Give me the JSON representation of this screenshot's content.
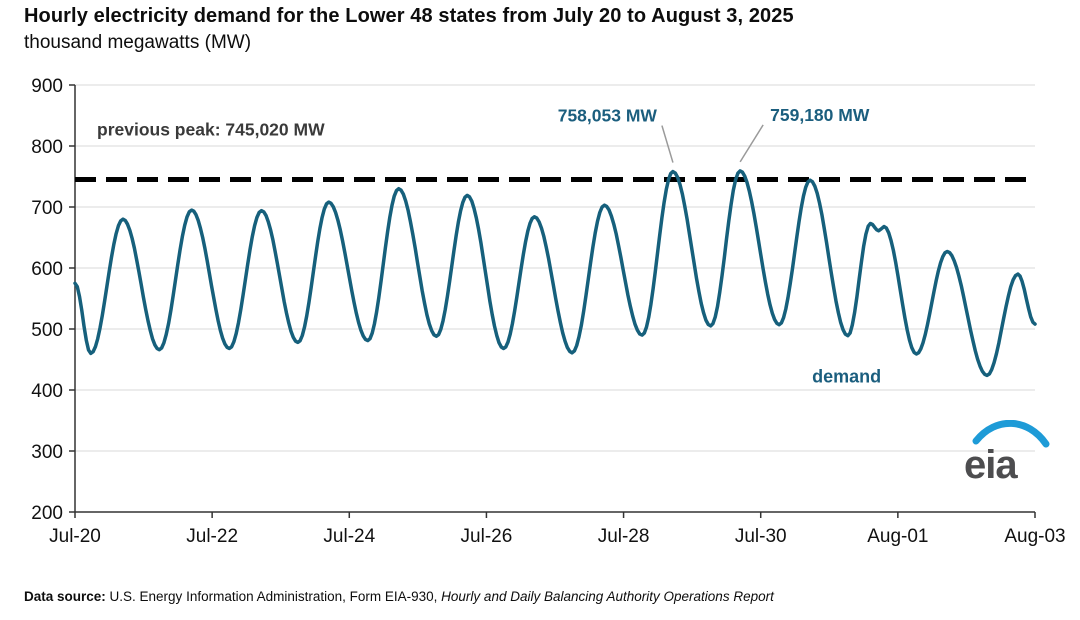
{
  "page": {
    "logo_text": "eia"
  },
  "footer": {
    "label": "Data source:",
    "text": " U.S. Energy Information Administration, Form EIA-930, ",
    "italic": "Hourly and Daily Balancing Authority Operations Report"
  },
  "chart_data": {
    "type": "line",
    "title": "Hourly electricity demand for the Lower 48 states from July 20 to August 3, 2025",
    "unit_label": "thousand megawatts (MW)",
    "xlabel": "",
    "ylabel": "thousand megawatts (MW)",
    "ylim": [
      200,
      900
    ],
    "yticks": [
      200,
      300,
      400,
      500,
      600,
      700,
      800,
      900
    ],
    "x_range_days": [
      0,
      14
    ],
    "xticks": [
      {
        "day": 0,
        "label": "Jul-20"
      },
      {
        "day": 2,
        "label": "Jul-22"
      },
      {
        "day": 4,
        "label": "Jul-24"
      },
      {
        "day": 6,
        "label": "Jul-26"
      },
      {
        "day": 8,
        "label": "Jul-28"
      },
      {
        "day": 10,
        "label": "Jul-30"
      },
      {
        "day": 12,
        "label": "Aug-01"
      },
      {
        "day": 14,
        "label": "Aug-03"
      }
    ],
    "grid": "horizontal",
    "previous_peak": {
      "value": 745.02,
      "label": "previous peak: 745,020 MW"
    },
    "annotations": [
      {
        "label": "758,053 MW",
        "day": 8.72,
        "value": 758.053
      },
      {
        "label": "759,180 MW",
        "day": 9.7,
        "value": 759.18
      }
    ],
    "series_label": {
      "text": "demand",
      "day": 10.75,
      "value": 412
    },
    "series": [
      {
        "name": "demand",
        "color": "#16607C",
        "points": [
          [
            0,
            575
          ],
          [
            0.23,
            460
          ],
          [
            0.7,
            680
          ],
          [
            1.23,
            466
          ],
          [
            1.7,
            695
          ],
          [
            2.25,
            468
          ],
          [
            2.72,
            694
          ],
          [
            3.25,
            478
          ],
          [
            3.7,
            708
          ],
          [
            4.27,
            481
          ],
          [
            4.72,
            730
          ],
          [
            5.27,
            488
          ],
          [
            5.72,
            719
          ],
          [
            6.25,
            468
          ],
          [
            6.7,
            684
          ],
          [
            7.25,
            461
          ],
          [
            7.72,
            703
          ],
          [
            8.27,
            490
          ],
          [
            8.72,
            758.053
          ],
          [
            9.27,
            505
          ],
          [
            9.7,
            759.18
          ],
          [
            10.27,
            507
          ],
          [
            10.72,
            744
          ],
          [
            11.27,
            489
          ],
          [
            11.6,
            673
          ],
          [
            11.72,
            661
          ],
          [
            11.8,
            668
          ],
          [
            12.27,
            459
          ],
          [
            12.72,
            627
          ],
          [
            13.3,
            424
          ],
          [
            13.75,
            590
          ],
          [
            14,
            508
          ]
        ]
      }
    ]
  }
}
